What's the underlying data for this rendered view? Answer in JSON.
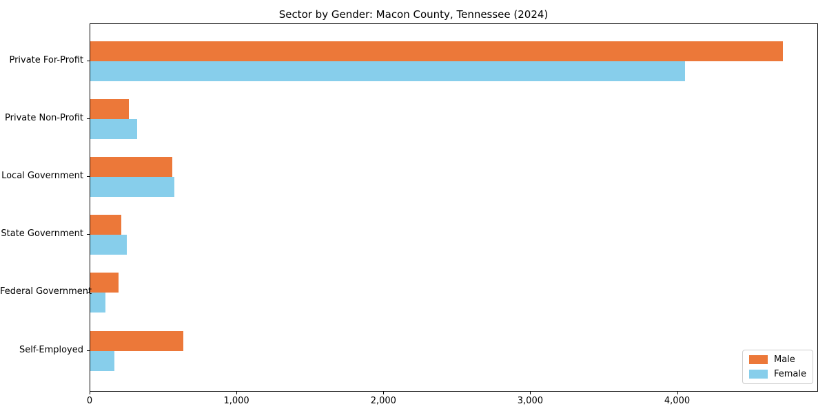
{
  "chart_data": {
    "type": "bar",
    "orientation": "horizontal",
    "title": "Sector by Gender: Macon County, Tennessee (2024)",
    "categories": [
      "Private For-Profit",
      "Private Non-Profit",
      "Local Government",
      "State Government",
      "Federal Government",
      "Self-Employed"
    ],
    "series": [
      {
        "name": "Male",
        "color": "#ec7839",
        "values": [
          4716,
          263,
          560,
          213,
          192,
          635
        ]
      },
      {
        "name": "Female",
        "color": "#87ceeb",
        "values": [
          4051,
          317,
          571,
          247,
          103,
          166
        ]
      }
    ],
    "xlabel": "",
    "ylabel": "",
    "xlim": [
      0,
      4950
    ],
    "xticks": [
      0,
      1000,
      2000,
      3000,
      4000
    ],
    "xtick_labels": [
      "0",
      "1,000",
      "2,000",
      "3,000",
      "4,000"
    ],
    "legend": {
      "position": "lower right",
      "entries": [
        "Male",
        "Female"
      ]
    },
    "grid": false,
    "background": "#ffffff",
    "axis_color": "#000000"
  }
}
